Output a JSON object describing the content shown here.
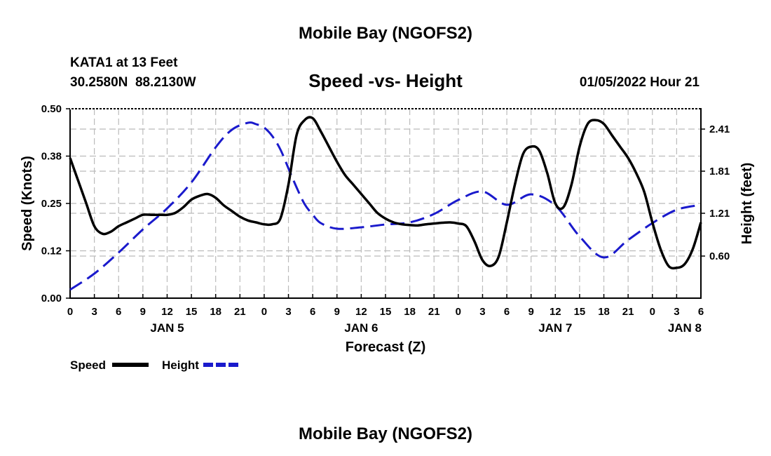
{
  "page": {
    "title_top": "Mobile Bay (NGOFS2)",
    "title_bottom": "Mobile Bay (NGOFS2)"
  },
  "station": {
    "name": "KATA1 at 13 Feet",
    "coords": "30.2580N  88.2130W",
    "datetime": "01/05/2022 Hour 21"
  },
  "chart_data": {
    "type": "line",
    "title": "Speed -vs- Height",
    "xlabel": "Forecast (Z)",
    "ylabel": "Speed (Knots)",
    "y2label": "Height (feet)",
    "xlim": [
      0,
      78
    ],
    "ylim": [
      0,
      0.5
    ],
    "y2lim": [
      0,
      2.7
    ],
    "y_ticks": [
      0.0,
      0.125,
      0.25,
      0.375,
      0.5
    ],
    "y_tick_labels": [
      "0.00",
      "0.12",
      "0.25",
      "0.38",
      "0.50"
    ],
    "y2_ticks": [
      0.6,
      1.21,
      1.81,
      2.41
    ],
    "y2_tick_labels": [
      "0.60",
      "1.21",
      "1.81",
      "2.41"
    ],
    "x_ticks": [
      0,
      3,
      6,
      9,
      12,
      15,
      18,
      21,
      24,
      27,
      30,
      33,
      36,
      39,
      42,
      45,
      48,
      51,
      54,
      57,
      60,
      63,
      66,
      69,
      72,
      75,
      78
    ],
    "x_tick_labels": [
      "0",
      "3",
      "6",
      "9",
      "12",
      "15",
      "18",
      "21",
      "0",
      "3",
      "6",
      "9",
      "12",
      "15",
      "18",
      "21",
      "0",
      "3",
      "6",
      "9",
      "12",
      "15",
      "18",
      "21",
      "0",
      "3",
      "6"
    ],
    "day_labels": [
      {
        "x": 12,
        "label": "JAN 5"
      },
      {
        "x": 36,
        "label": "JAN 6"
      },
      {
        "x": 60,
        "label": "JAN 7"
      },
      {
        "x": 76,
        "label": "JAN 8"
      }
    ],
    "grid": true,
    "legend": [
      {
        "name": "Speed",
        "color": "#000000",
        "style": "solid"
      },
      {
        "name": "Height",
        "color": "#1a1acc",
        "style": "dashed"
      }
    ],
    "series": [
      {
        "name": "Speed",
        "axis": "left",
        "color": "#000000",
        "x": [
          0,
          1,
          2,
          3,
          4,
          5,
          6,
          7,
          8,
          9,
          10,
          11,
          12,
          13,
          14,
          15,
          16,
          17,
          18,
          19,
          20,
          21,
          22,
          23,
          24,
          25,
          26,
          27,
          28,
          29,
          30,
          31,
          32,
          33,
          34,
          35,
          36,
          37,
          38,
          39,
          40,
          41,
          42,
          43,
          44,
          45,
          46,
          47,
          48,
          49,
          50,
          51,
          52,
          53,
          54,
          55,
          56,
          57,
          58,
          59,
          60,
          61,
          62,
          63,
          64,
          65,
          66,
          67,
          68,
          69,
          70,
          71,
          72,
          73,
          74,
          75,
          76,
          77,
          78
        ],
        "values": [
          0.37,
          0.31,
          0.25,
          0.19,
          0.17,
          0.175,
          0.19,
          0.2,
          0.21,
          0.22,
          0.22,
          0.22,
          0.22,
          0.225,
          0.24,
          0.26,
          0.27,
          0.275,
          0.265,
          0.245,
          0.23,
          0.215,
          0.205,
          0.2,
          0.195,
          0.195,
          0.21,
          0.3,
          0.43,
          0.47,
          0.475,
          0.44,
          0.4,
          0.36,
          0.325,
          0.3,
          0.275,
          0.25,
          0.225,
          0.21,
          0.2,
          0.195,
          0.193,
          0.192,
          0.195,
          0.197,
          0.199,
          0.2,
          0.197,
          0.19,
          0.15,
          0.1,
          0.085,
          0.11,
          0.2,
          0.3,
          0.38,
          0.4,
          0.39,
          0.33,
          0.25,
          0.24,
          0.3,
          0.4,
          0.46,
          0.47,
          0.46,
          0.43,
          0.4,
          0.37,
          0.33,
          0.28,
          0.2,
          0.13,
          0.085,
          0.08,
          0.09,
          0.13,
          0.2
        ]
      },
      {
        "name": "Height",
        "axis": "right",
        "color": "#1a1acc",
        "x": [
          0,
          3,
          6,
          9,
          12,
          15,
          18,
          20,
          22,
          23,
          24,
          25,
          26,
          27,
          28,
          29,
          30,
          31,
          33,
          36,
          39,
          42,
          45,
          48,
          51,
          54,
          57,
          60,
          63,
          66,
          69,
          72,
          75,
          78
        ],
        "values": [
          0.12,
          0.35,
          0.65,
          0.98,
          1.28,
          1.65,
          2.15,
          2.4,
          2.5,
          2.48,
          2.43,
          2.31,
          2.12,
          1.85,
          1.58,
          1.34,
          1.19,
          1.07,
          0.99,
          1.01,
          1.05,
          1.08,
          1.2,
          1.4,
          1.52,
          1.33,
          1.48,
          1.32,
          0.88,
          0.58,
          0.83,
          1.07,
          1.26,
          1.33
        ]
      }
    ]
  }
}
